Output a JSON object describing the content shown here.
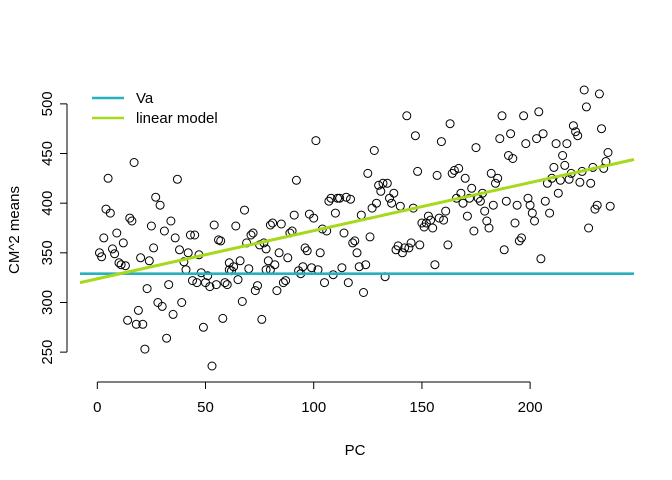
{
  "chart_data": {
    "type": "scatter",
    "title": "",
    "xlabel": "PC",
    "ylabel": "CM^2 means",
    "xlim": [
      -8,
      248
    ],
    "ylim": [
      232,
      518
    ],
    "xticks": [
      0,
      50,
      100,
      150,
      200
    ],
    "yticks": [
      250,
      300,
      350,
      400,
      450,
      500
    ],
    "grid": false,
    "legend": {
      "position": "top-left",
      "entries": [
        {
          "label": "Va",
          "color": "#27b0bd"
        },
        {
          "label": "linear model",
          "color": "#a6d81c"
        }
      ]
    },
    "reference_lines": [
      {
        "name": "Va",
        "kind": "horizontal",
        "y": 329,
        "color": "#27b0bd"
      },
      {
        "name": "linear model",
        "kind": "line",
        "from": [
          -8,
          320
        ],
        "to": [
          248,
          444
        ],
        "color": "#a6d81c"
      }
    ],
    "points": [
      [
        1,
        350
      ],
      [
        2,
        346
      ],
      [
        3,
        365
      ],
      [
        4,
        394
      ],
      [
        5,
        425
      ],
      [
        6,
        390
      ],
      [
        7,
        354
      ],
      [
        8,
        349
      ],
      [
        9,
        370
      ],
      [
        10,
        340
      ],
      [
        11,
        338
      ],
      [
        12,
        360
      ],
      [
        13,
        337
      ],
      [
        14,
        282
      ],
      [
        15,
        385
      ],
      [
        16,
        382
      ],
      [
        17,
        441
      ],
      [
        18,
        278
      ],
      [
        19,
        292
      ],
      [
        20,
        345
      ],
      [
        21,
        278
      ],
      [
        22,
        253
      ],
      [
        23,
        314
      ],
      [
        24,
        342
      ],
      [
        25,
        377
      ],
      [
        26,
        355
      ],
      [
        27,
        406
      ],
      [
        28,
        300
      ],
      [
        29,
        398
      ],
      [
        30,
        296
      ],
      [
        31,
        372
      ],
      [
        32,
        264
      ],
      [
        33,
        318
      ],
      [
        34,
        382
      ],
      [
        35,
        288
      ],
      [
        36,
        365
      ],
      [
        37,
        424
      ],
      [
        38,
        353
      ],
      [
        39,
        300
      ],
      [
        40,
        341
      ],
      [
        41,
        333
      ],
      [
        42,
        350
      ],
      [
        43,
        368
      ],
      [
        44,
        322
      ],
      [
        45,
        368
      ],
      [
        46,
        320
      ],
      [
        47,
        348
      ],
      [
        48,
        330
      ],
      [
        49,
        275
      ],
      [
        50,
        320
      ],
      [
        51,
        327
      ],
      [
        52,
        316
      ],
      [
        53,
        236
      ],
      [
        54,
        378
      ],
      [
        55,
        318
      ],
      [
        56,
        363
      ],
      [
        57,
        362
      ],
      [
        58,
        284
      ],
      [
        59,
        320
      ],
      [
        60,
        318
      ],
      [
        61,
        340
      ],
      [
        62,
        332
      ],
      [
        63,
        336
      ],
      [
        64,
        377
      ],
      [
        65,
        323
      ],
      [
        66,
        342
      ],
      [
        67,
        301
      ],
      [
        68,
        393
      ],
      [
        69,
        360
      ],
      [
        70,
        334
      ],
      [
        71,
        368
      ],
      [
        72,
        370
      ],
      [
        73,
        312
      ],
      [
        74,
        317
      ],
      [
        75,
        358
      ],
      [
        76,
        283
      ],
      [
        77,
        360
      ],
      [
        78,
        354
      ],
      [
        79,
        342
      ],
      [
        80,
        333
      ],
      [
        81,
        380
      ],
      [
        82,
        338
      ],
      [
        83,
        312
      ],
      [
        84,
        350
      ],
      [
        85,
        379
      ],
      [
        86,
        320
      ],
      [
        87,
        322
      ],
      [
        88,
        345
      ],
      [
        89,
        370
      ],
      [
        90,
        372
      ],
      [
        91,
        388
      ],
      [
        92,
        423
      ],
      [
        93,
        332
      ],
      [
        94,
        329
      ],
      [
        95,
        336
      ],
      [
        96,
        355
      ],
      [
        97,
        352
      ],
      [
        98,
        389
      ],
      [
        99,
        335
      ],
      [
        100,
        385
      ],
      [
        101,
        463
      ],
      [
        102,
        333
      ],
      [
        103,
        350
      ],
      [
        104,
        374
      ],
      [
        105,
        320
      ],
      [
        106,
        372
      ],
      [
        107,
        402
      ],
      [
        108,
        405
      ],
      [
        109,
        328
      ],
      [
        110,
        390
      ],
      [
        111,
        405
      ],
      [
        112,
        405
      ],
      [
        113,
        335
      ],
      [
        114,
        370
      ],
      [
        115,
        406
      ],
      [
        116,
        320
      ],
      [
        117,
        404
      ],
      [
        118,
        360
      ],
      [
        119,
        362
      ],
      [
        120,
        350
      ],
      [
        121,
        336
      ],
      [
        122,
        388
      ],
      [
        123,
        310
      ],
      [
        124,
        338
      ],
      [
        125,
        430
      ],
      [
        126,
        366
      ],
      [
        127,
        395
      ],
      [
        128,
        453
      ],
      [
        129,
        400
      ],
      [
        130,
        418
      ],
      [
        131,
        412
      ],
      [
        132,
        420
      ],
      [
        133,
        326
      ],
      [
        134,
        420
      ],
      [
        135,
        405
      ],
      [
        136,
        400
      ],
      [
        137,
        410
      ],
      [
        138,
        353
      ],
      [
        139,
        357
      ],
      [
        140,
        397
      ],
      [
        141,
        350
      ],
      [
        142,
        355
      ],
      [
        143,
        488
      ],
      [
        144,
        355
      ],
      [
        145,
        360
      ],
      [
        146,
        395
      ],
      [
        147,
        468
      ],
      [
        148,
        432
      ],
      [
        149,
        358
      ],
      [
        150,
        380
      ],
      [
        151,
        376
      ],
      [
        152,
        380
      ],
      [
        153,
        387
      ],
      [
        154,
        383
      ],
      [
        155,
        375
      ],
      [
        156,
        338
      ],
      [
        157,
        428
      ],
      [
        158,
        385
      ],
      [
        159,
        462
      ],
      [
        160,
        383
      ],
      [
        161,
        392
      ],
      [
        162,
        358
      ],
      [
        163,
        480
      ],
      [
        164,
        430
      ],
      [
        165,
        433
      ],
      [
        166,
        405
      ],
      [
        167,
        435
      ],
      [
        168,
        410
      ],
      [
        169,
        400
      ],
      [
        170,
        425
      ],
      [
        171,
        387
      ],
      [
        172,
        405
      ],
      [
        173,
        415
      ],
      [
        174,
        372
      ],
      [
        175,
        456
      ],
      [
        176,
        405
      ],
      [
        177,
        402
      ],
      [
        178,
        410
      ],
      [
        179,
        392
      ],
      [
        180,
        382
      ],
      [
        181,
        375
      ],
      [
        182,
        430
      ],
      [
        183,
        398
      ],
      [
        184,
        420
      ],
      [
        185,
        425
      ],
      [
        186,
        465
      ],
      [
        187,
        488
      ],
      [
        188,
        353
      ],
      [
        189,
        402
      ],
      [
        190,
        448
      ],
      [
        191,
        470
      ],
      [
        192,
        445
      ],
      [
        193,
        380
      ],
      [
        194,
        398
      ],
      [
        195,
        362
      ],
      [
        196,
        365
      ],
      [
        197,
        488
      ],
      [
        198,
        460
      ],
      [
        199,
        405
      ],
      [
        200,
        398
      ],
      [
        201,
        390
      ],
      [
        202,
        382
      ],
      [
        203,
        465
      ],
      [
        204,
        492
      ],
      [
        205,
        344
      ],
      [
        206,
        470
      ],
      [
        207,
        402
      ],
      [
        208,
        420
      ],
      [
        209,
        390
      ],
      [
        210,
        425
      ],
      [
        211,
        436
      ],
      [
        212,
        460
      ],
      [
        213,
        410
      ],
      [
        214,
        423
      ],
      [
        215,
        448
      ],
      [
        216,
        438
      ],
      [
        217,
        460
      ],
      [
        218,
        424
      ],
      [
        219,
        430
      ],
      [
        220,
        478
      ],
      [
        221,
        472
      ],
      [
        222,
        468
      ],
      [
        223,
        421
      ],
      [
        224,
        432
      ],
      [
        225,
        514
      ],
      [
        226,
        497
      ],
      [
        227,
        375
      ],
      [
        228,
        420
      ],
      [
        229,
        436
      ],
      [
        230,
        394
      ],
      [
        231,
        398
      ],
      [
        232,
        510
      ],
      [
        233,
        475
      ],
      [
        234,
        435
      ],
      [
        235,
        442
      ],
      [
        236,
        451
      ],
      [
        237,
        397
      ],
      [
        61,
        333
      ],
      [
        78,
        333
      ],
      [
        80,
        378
      ]
    ]
  }
}
